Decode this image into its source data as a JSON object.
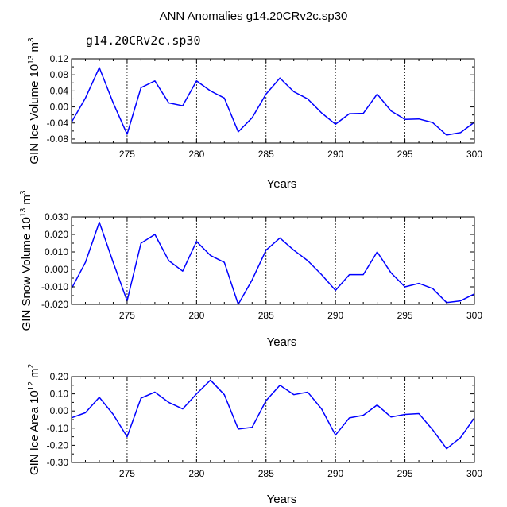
{
  "title": "ANN Anomalies g14.20CRv2c.sp30",
  "subtitle": "g14.20CRv2c.sp30",
  "colors": {
    "line": "#0000ff",
    "subtitle": "#3b3bd6",
    "axis": "#000000"
  },
  "chart_data": [
    {
      "type": "line",
      "series": [
        {
          "name": "GIN Ice Volume",
          "values": [
            -0.038,
            0.022,
            0.098,
            0.01,
            -0.068,
            0.048,
            0.065,
            0.01,
            0.003,
            0.065,
            0.04,
            0.022,
            -0.062,
            -0.027,
            0.032,
            0.072,
            0.038,
            0.02,
            -0.015,
            -0.043,
            -0.017,
            -0.016,
            0.032,
            -0.01,
            -0.031,
            -0.03,
            -0.039,
            -0.07,
            -0.064,
            -0.038
          ]
        }
      ],
      "x": [
        271,
        272,
        273,
        274,
        275,
        276,
        277,
        278,
        279,
        280,
        281,
        282,
        283,
        284,
        285,
        286,
        287,
        288,
        289,
        290,
        291,
        292,
        293,
        294,
        295,
        296,
        297,
        298,
        299,
        300
      ],
      "xlim": [
        271,
        300
      ],
      "ylim": [
        -0.09,
        0.12
      ],
      "x_ticks": [
        275,
        280,
        285,
        290,
        295,
        300
      ],
      "y_ticks": [
        -0.08,
        -0.04,
        0.0,
        0.04,
        0.08,
        0.12
      ],
      "y_tick_labels": [
        "-0.08",
        "-0.04",
        "0.00",
        "0.04",
        "0.08",
        "0.12"
      ],
      "dashed_x": [
        275,
        280,
        285,
        290,
        295
      ],
      "xlabel": "Years",
      "ylabel_main": "GIN Ice Volume 10",
      "ylabel_exp": "13",
      "ylabel_unit": " m",
      "ylabel_unit_exp": "3"
    },
    {
      "type": "line",
      "series": [
        {
          "name": "GIN Snow Volume",
          "values": [
            -0.011,
            0.004,
            0.027,
            0.004,
            -0.018,
            0.015,
            0.02,
            0.005,
            -0.001,
            0.016,
            0.008,
            0.004,
            -0.02,
            -0.006,
            0.011,
            0.018,
            0.011,
            0.005,
            -0.003,
            -0.012,
            -0.003,
            -0.003,
            0.01,
            -0.002,
            -0.01,
            -0.008,
            -0.011,
            -0.019,
            -0.018,
            -0.014
          ]
        }
      ],
      "x": [
        271,
        272,
        273,
        274,
        275,
        276,
        277,
        278,
        279,
        280,
        281,
        282,
        283,
        284,
        285,
        286,
        287,
        288,
        289,
        290,
        291,
        292,
        293,
        294,
        295,
        296,
        297,
        298,
        299,
        300
      ],
      "xlim": [
        271,
        300
      ],
      "ylim": [
        -0.02,
        0.03
      ],
      "x_ticks": [
        275,
        280,
        285,
        290,
        295,
        300
      ],
      "y_ticks": [
        -0.02,
        -0.01,
        0.0,
        0.01,
        0.02,
        0.03
      ],
      "y_tick_labels": [
        "-0.020",
        "-0.010",
        "0.000",
        "0.010",
        "0.020",
        "0.030"
      ],
      "dashed_x": [
        275,
        280,
        285,
        290,
        295
      ],
      "xlabel": "Years",
      "ylabel_main": "GIN Snow Volume 10",
      "ylabel_exp": "13",
      "ylabel_unit": " m",
      "ylabel_unit_exp": "3"
    },
    {
      "type": "line",
      "series": [
        {
          "name": "GIN Ice Area",
          "values": [
            -0.04,
            -0.01,
            0.08,
            -0.02,
            -0.15,
            0.075,
            0.11,
            0.05,
            0.012,
            0.1,
            0.18,
            0.095,
            -0.105,
            -0.095,
            0.06,
            0.15,
            0.095,
            0.11,
            0.012,
            -0.14,
            -0.04,
            -0.025,
            0.035,
            -0.035,
            -0.02,
            -0.015,
            -0.11,
            -0.22,
            -0.155,
            -0.04
          ]
        }
      ],
      "x": [
        271,
        272,
        273,
        274,
        275,
        276,
        277,
        278,
        279,
        280,
        281,
        282,
        283,
        284,
        285,
        286,
        287,
        288,
        289,
        290,
        291,
        292,
        293,
        294,
        295,
        296,
        297,
        298,
        299,
        300
      ],
      "xlim": [
        271,
        300
      ],
      "ylim": [
        -0.3,
        0.2
      ],
      "x_ticks": [
        275,
        280,
        285,
        290,
        295,
        300
      ],
      "y_ticks": [
        -0.3,
        -0.2,
        -0.1,
        0.0,
        0.1,
        0.2
      ],
      "y_tick_labels": [
        "-0.30",
        "-0.20",
        "-0.10",
        "0.00",
        "0.10",
        "0.20"
      ],
      "dashed_x": [
        275,
        280,
        285,
        290,
        295
      ],
      "xlabel": "Years",
      "ylabel_main": "GIN Ice Area 10",
      "ylabel_exp": "12",
      "ylabel_unit": " m",
      "ylabel_unit_exp": "2"
    }
  ]
}
